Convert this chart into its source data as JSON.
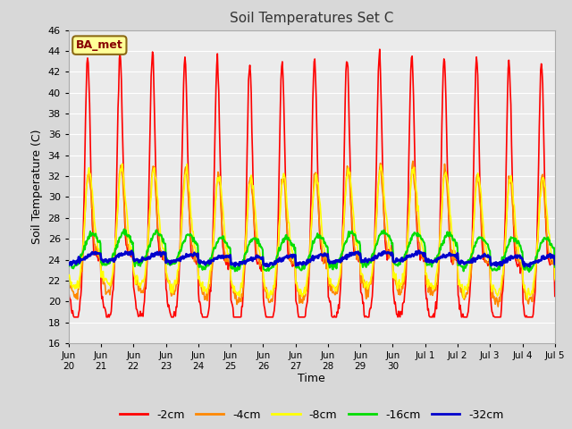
{
  "title": "Soil Temperatures Set C",
  "xlabel": "Time",
  "ylabel": "Soil Temperature (C)",
  "ylim": [
    16,
    46
  ],
  "yticks": [
    16,
    18,
    20,
    22,
    24,
    26,
    28,
    30,
    32,
    34,
    36,
    38,
    40,
    42,
    44,
    46
  ],
  "fig_bg_color": "#d8d8d8",
  "plot_bg_color": "#ebebeb",
  "annotation_text": "BA_met",
  "annotation_bg": "#ffff99",
  "annotation_border": "#8b6914",
  "legend_labels": [
    "-2cm",
    "-4cm",
    "-8cm",
    "-16cm",
    "-32cm"
  ],
  "line_colors": [
    "#ff0000",
    "#ff8800",
    "#ffff00",
    "#00dd00",
    "#0000cc"
  ],
  "line_widths": [
    1.2,
    1.2,
    1.2,
    1.5,
    2.0
  ],
  "n_days": 15,
  "hours_per_day": 48
}
